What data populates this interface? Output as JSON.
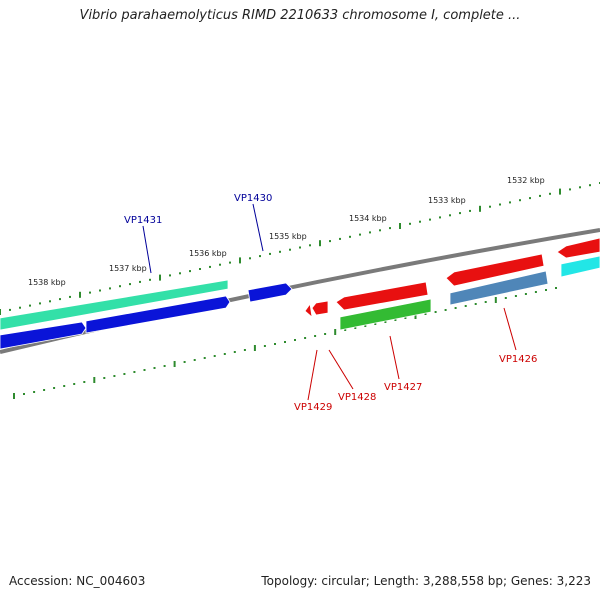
{
  "title": "Vibrio parahaemolyticus RIMD 2210633 chromosome I, complete ...",
  "footer": {
    "accession": "Accession: NC_004603",
    "topology": "Topology: circular; Length: 3,288,558 bp; Genes: 3,223"
  },
  "colors": {
    "backbone": "#7a7a7a",
    "ticks": "#2e8b2e",
    "label_blue": "#000099",
    "label_red": "#cc0000"
  },
  "scale_labels": [
    "1538 kbp",
    "1537 kbp",
    "1536 kbp",
    "1535 kbp",
    "1534 kbp",
    "1533 kbp",
    "1532 kbp"
  ],
  "gene_labels": [
    {
      "text": "VP1431",
      "color": "#000099"
    },
    {
      "text": "VP1430",
      "color": "#000099"
    },
    {
      "text": "VP1429",
      "color": "#cc0000"
    },
    {
      "text": "VP1428",
      "color": "#cc0000"
    },
    {
      "text": "VP1427",
      "color": "#cc0000"
    },
    {
      "text": "VP1426",
      "color": "#cc0000"
    }
  ],
  "features": [
    {
      "name": "teal-gene",
      "color": "#33e0a8"
    },
    {
      "name": "blue-gene-long",
      "color": "#0a14d8"
    },
    {
      "name": "blue-gene-left",
      "color": "#0a14d8"
    },
    {
      "name": "blue-gene-small",
      "color": "#0a14d8"
    },
    {
      "name": "red-gene-tiny",
      "color": "#e81010"
    },
    {
      "name": "red-gene-small",
      "color": "#e81010"
    },
    {
      "name": "red-gene-mid",
      "color": "#e81010"
    },
    {
      "name": "green-gene",
      "color": "#33bb33"
    },
    {
      "name": "red-gene-right",
      "color": "#e81010"
    },
    {
      "name": "steel-gene",
      "color": "#4f86b8"
    },
    {
      "name": "red-gene-far",
      "color": "#e81010"
    },
    {
      "name": "cyan-gene",
      "color": "#22e6e6"
    }
  ]
}
